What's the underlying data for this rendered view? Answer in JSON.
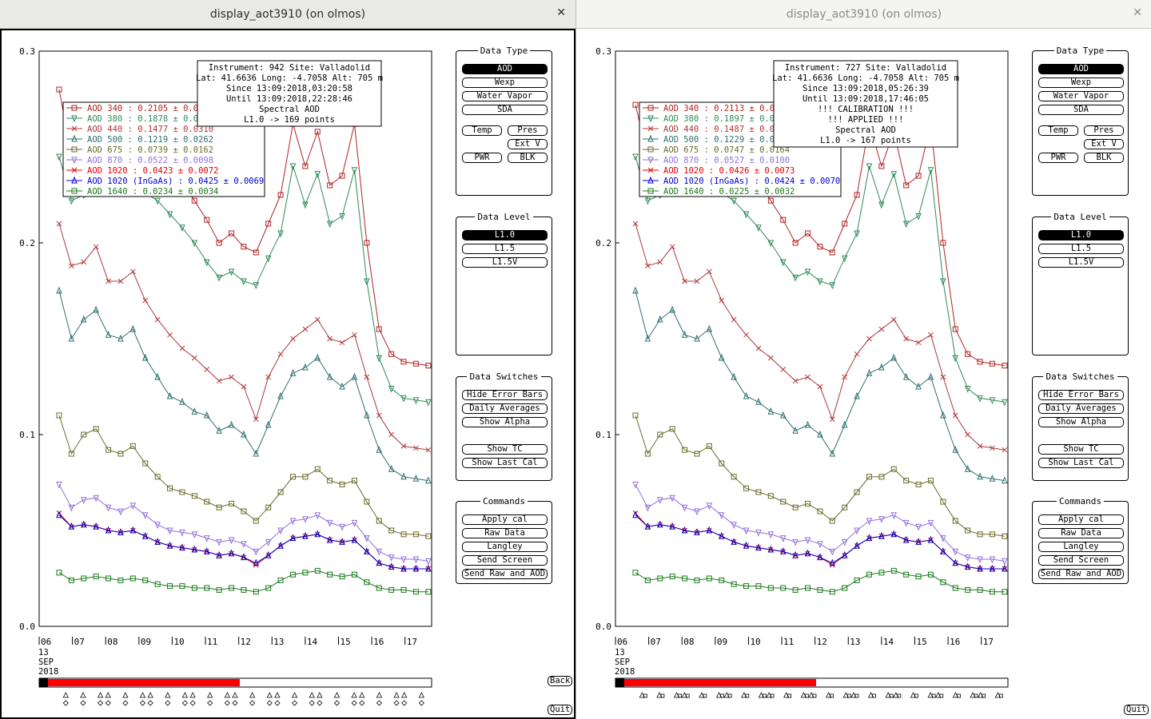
{
  "windows": [
    {
      "title": "display_aot3910 (on olmos)",
      "close_icon": "✕",
      "info_box": [
        "Instrument: 942 Site: Valladolid",
        "Lat: 41.6636 Long: -4.7058 Alt: 705 m",
        "Since 13:09:2018,03:20:58",
        "Until 13:09:2018,22:28:46",
        "Spectral AOD",
        "L1.0 -> 169 points"
      ],
      "legend": [
        {
          "name": "AOD 340",
          "stat": "  : 0.2105 ± 0.0",
          "color": "#b22222",
          "marker": "square"
        },
        {
          "name": "AOD 380",
          "stat": "  : 0.1878 ± 0.0",
          "color": "#2e8b57",
          "marker": "tri-down"
        },
        {
          "name": "AOD 440",
          "stat": "  : 0.1477 ± 0.0310",
          "color": "#b03838",
          "marker": "x"
        },
        {
          "name": "AOD 500",
          "stat": "  : 0.1219 ± 0.0262",
          "color": "#2f6f6f",
          "marker": "tri-up"
        },
        {
          "name": "AOD 675",
          "stat": "  : 0.0739 ± 0.0162",
          "color": "#6b6b2a",
          "marker": "square"
        },
        {
          "name": "AOD 870",
          "stat": "  : 0.0522 ± 0.0098",
          "color": "#9370db",
          "marker": "tri-down"
        },
        {
          "name": "AOD 1020",
          "stat": "  : 0.0423 ± 0.0072",
          "color": "#e00000",
          "marker": "x"
        },
        {
          "name": "AOD 1020 (InGaAs)",
          "stat": "  : 0.0425 ± 0.0069",
          "color": "#0000cc",
          "marker": "tri-up"
        },
        {
          "name": "AOD 1640",
          "stat": "  : 0.0234 ± 0.0034",
          "color": "#1a7a1a",
          "marker": "square"
        }
      ],
      "progress_fraction": 0.5,
      "back_label": "Back"
    },
    {
      "title": "display_aot3910 (on olmos)",
      "close_icon": "✕",
      "info_box": [
        "Instrument: 727 Site: Valladolid",
        "Lat: 41.6636 Long: -4.7058 Alt: 705 m",
        "Since 13:09:2018,05:26:39",
        "Until 13:09:2018,17:46:05",
        "!!! CALIBRATION !!!",
        "!!!   APPLIED   !!!",
        "Spectral AOD",
        "L1.0 -> 167 points"
      ],
      "legend": [
        {
          "name": "AOD 340",
          "stat": "  : 0.2113 ± 0.0",
          "color": "#b22222",
          "marker": "square"
        },
        {
          "name": "AOD 380",
          "stat": "  : 0.1897 ± 0.0",
          "color": "#2e8b57",
          "marker": "tri-down"
        },
        {
          "name": "AOD 440",
          "stat": "  : 0.1487 ± 0.0",
          "color": "#b03838",
          "marker": "x"
        },
        {
          "name": "AOD 500",
          "stat": "  : 0.1229 ± 0.0",
          "color": "#2f6f6f",
          "marker": "tri-up"
        },
        {
          "name": "AOD 675",
          "stat": "  : 0.0747 ± 0.0164",
          "color": "#6b6b2a",
          "marker": "square"
        },
        {
          "name": "AOD 870",
          "stat": "  : 0.0527 ± 0.0100",
          "color": "#9370db",
          "marker": "tri-down"
        },
        {
          "name": "AOD 1020",
          "stat": "  : 0.0426 ± 0.0073",
          "color": "#e00000",
          "marker": "x"
        },
        {
          "name": "AOD 1020 (InGaAs)",
          "stat": "  : 0.0424 ± 0.0070",
          "color": "#0000cc",
          "marker": "tri-up"
        },
        {
          "name": "AOD 1640",
          "stat": "  : 0.0225 ± 0.0032",
          "color": "#1a7a1a",
          "marker": "square"
        }
      ],
      "progress_fraction": 0.5,
      "back_label": ""
    }
  ],
  "axes": {
    "y_ticks": [
      "0.0",
      "0.1",
      "0.2",
      "0.3"
    ],
    "x_ticks": [
      "06",
      "07",
      "08",
      "09",
      "10",
      "11",
      "12",
      "13",
      "14",
      "15",
      "16",
      "17"
    ],
    "x_date_lines": [
      "13",
      "SEP",
      "2018"
    ]
  },
  "panels": {
    "data_type": {
      "title": "Data Type",
      "buttons": [
        "AOD",
        "Wexp",
        "Water Vapor",
        "SDA",
        "Temp",
        "Pres",
        "Ext V",
        "PWR",
        "BLK"
      ],
      "selected": "AOD"
    },
    "data_level": {
      "title": "Data Level",
      "buttons": [
        "L1.0",
        "L1.5",
        "L1.5V"
      ],
      "selected": "L1.0"
    },
    "data_switches": {
      "title": "Data Switches",
      "buttons": [
        "Hide Error Bars",
        "Daily Averages",
        "Show Alpha",
        "Show TC",
        "Show Last Cal"
      ]
    },
    "commands": {
      "title": "Commands",
      "buttons": [
        "Apply cal",
        "Raw Data",
        "Langley",
        "Send Screen",
        "Send Raw and AOD"
      ]
    }
  },
  "quit_label": "Quit",
  "chart_data": [
    {
      "type": "line",
      "title": "",
      "xlabel": "",
      "ylabel": "",
      "x_range_hours": [
        6,
        17.8
      ],
      "ylim": [
        0,
        0.3
      ],
      "series": [
        {
          "name": "AOD 340",
          "values": [
            0.28,
            0.245,
            0.248,
            0.262,
            0.252,
            0.256,
            0.26,
            0.248,
            0.246,
            0.24,
            0.232,
            0.222,
            0.212,
            0.2,
            0.205,
            0.198,
            0.195,
            0.21,
            0.225,
            0.262,
            0.24,
            0.258,
            0.23,
            0.235,
            0.262,
            0.2,
            0.155,
            0.142,
            0.138,
            0.137,
            0.136
          ]
        },
        {
          "name": "AOD 380",
          "values": [
            0.245,
            0.222,
            0.225,
            0.24,
            0.23,
            0.232,
            0.236,
            0.226,
            0.222,
            0.215,
            0.208,
            0.2,
            0.19,
            0.182,
            0.185,
            0.18,
            0.178,
            0.192,
            0.205,
            0.24,
            0.22,
            0.236,
            0.21,
            0.214,
            0.238,
            0.18,
            0.14,
            0.124,
            0.119,
            0.118,
            0.117
          ]
        },
        {
          "name": "AOD 440",
          "values": [
            0.21,
            0.188,
            0.19,
            0.198,
            0.18,
            0.18,
            0.185,
            0.17,
            0.16,
            0.152,
            0.145,
            0.14,
            0.134,
            0.128,
            0.13,
            0.125,
            0.108,
            0.13,
            0.142,
            0.15,
            0.155,
            0.16,
            0.15,
            0.148,
            0.152,
            0.13,
            0.11,
            0.1,
            0.094,
            0.093,
            0.092
          ]
        },
        {
          "name": "AOD 500",
          "values": [
            0.175,
            0.15,
            0.16,
            0.165,
            0.152,
            0.15,
            0.155,
            0.14,
            0.13,
            0.12,
            0.117,
            0.112,
            0.11,
            0.102,
            0.105,
            0.1,
            0.09,
            0.105,
            0.12,
            0.132,
            0.135,
            0.14,
            0.13,
            0.125,
            0.13,
            0.11,
            0.092,
            0.082,
            0.078,
            0.077,
            0.076
          ]
        },
        {
          "name": "AOD 675",
          "values": [
            0.11,
            0.09,
            0.1,
            0.103,
            0.092,
            0.09,
            0.094,
            0.085,
            0.078,
            0.072,
            0.07,
            0.068,
            0.065,
            0.062,
            0.064,
            0.06,
            0.055,
            0.062,
            0.07,
            0.078,
            0.078,
            0.082,
            0.076,
            0.074,
            0.076,
            0.065,
            0.055,
            0.05,
            0.048,
            0.048,
            0.047
          ]
        },
        {
          "name": "AOD 870",
          "values": [
            0.074,
            0.062,
            0.066,
            0.067,
            0.062,
            0.06,
            0.063,
            0.058,
            0.053,
            0.05,
            0.049,
            0.048,
            0.046,
            0.044,
            0.045,
            0.043,
            0.039,
            0.044,
            0.05,
            0.055,
            0.056,
            0.058,
            0.054,
            0.052,
            0.054,
            0.046,
            0.039,
            0.036,
            0.035,
            0.035,
            0.034
          ]
        },
        {
          "name": "AOD 1020",
          "values": [
            0.059,
            0.052,
            0.053,
            0.052,
            0.05,
            0.049,
            0.05,
            0.047,
            0.044,
            0.042,
            0.041,
            0.04,
            0.039,
            0.037,
            0.038,
            0.036,
            0.032,
            0.037,
            0.042,
            0.046,
            0.047,
            0.048,
            0.045,
            0.044,
            0.045,
            0.039,
            0.033,
            0.031,
            0.03,
            0.03,
            0.03
          ]
        },
        {
          "name": "AOD 1020 (InGaAs)",
          "values": [
            0.058,
            0.052,
            0.053,
            0.052,
            0.05,
            0.049,
            0.05,
            0.047,
            0.044,
            0.042,
            0.041,
            0.04,
            0.039,
            0.037,
            0.038,
            0.036,
            0.033,
            0.037,
            0.042,
            0.046,
            0.047,
            0.048,
            0.045,
            0.044,
            0.045,
            0.039,
            0.033,
            0.031,
            0.03,
            0.03,
            0.03
          ]
        },
        {
          "name": "AOD 1640",
          "values": [
            0.028,
            0.024,
            0.025,
            0.026,
            0.025,
            0.024,
            0.025,
            0.024,
            0.022,
            0.021,
            0.021,
            0.02,
            0.02,
            0.019,
            0.02,
            0.019,
            0.018,
            0.02,
            0.024,
            0.027,
            0.028,
            0.029,
            0.027,
            0.026,
            0.027,
            0.023,
            0.02,
            0.019,
            0.019,
            0.018,
            0.018
          ]
        }
      ]
    },
    {
      "type": "line",
      "title": "",
      "xlabel": "",
      "ylabel": "",
      "x_range_hours": [
        6,
        17.8
      ],
      "ylim": [
        0,
        0.3
      ],
      "series": [
        {
          "name": "AOD 340",
          "values": [
            0.272,
            0.245,
            0.248,
            0.262,
            0.252,
            0.256,
            0.26,
            0.248,
            0.246,
            0.24,
            0.232,
            0.222,
            0.212,
            0.2,
            0.205,
            0.198,
            0.195,
            0.21,
            0.225,
            0.262,
            0.24,
            0.258,
            0.23,
            0.235,
            0.262,
            0.2,
            0.155,
            0.142,
            0.138,
            0.137,
            0.136
          ]
        },
        {
          "name": "AOD 380",
          "values": [
            0.245,
            0.222,
            0.225,
            0.24,
            0.23,
            0.232,
            0.236,
            0.226,
            0.222,
            0.215,
            0.208,
            0.2,
            0.19,
            0.182,
            0.185,
            0.18,
            0.178,
            0.192,
            0.205,
            0.24,
            0.22,
            0.236,
            0.21,
            0.214,
            0.238,
            0.18,
            0.14,
            0.124,
            0.119,
            0.118,
            0.117
          ]
        },
        {
          "name": "AOD 440",
          "values": [
            0.21,
            0.188,
            0.19,
            0.198,
            0.18,
            0.18,
            0.185,
            0.17,
            0.16,
            0.152,
            0.145,
            0.14,
            0.134,
            0.128,
            0.13,
            0.125,
            0.108,
            0.13,
            0.142,
            0.15,
            0.155,
            0.16,
            0.15,
            0.148,
            0.152,
            0.13,
            0.11,
            0.1,
            0.094,
            0.093,
            0.092
          ]
        },
        {
          "name": "AOD 500",
          "values": [
            0.175,
            0.15,
            0.16,
            0.165,
            0.152,
            0.15,
            0.155,
            0.14,
            0.13,
            0.12,
            0.117,
            0.112,
            0.11,
            0.102,
            0.105,
            0.1,
            0.09,
            0.105,
            0.12,
            0.132,
            0.135,
            0.14,
            0.13,
            0.125,
            0.13,
            0.11,
            0.092,
            0.082,
            0.078,
            0.077,
            0.076
          ]
        },
        {
          "name": "AOD 675",
          "values": [
            0.11,
            0.09,
            0.1,
            0.103,
            0.092,
            0.09,
            0.094,
            0.085,
            0.078,
            0.072,
            0.07,
            0.068,
            0.065,
            0.062,
            0.064,
            0.06,
            0.055,
            0.062,
            0.07,
            0.078,
            0.078,
            0.082,
            0.076,
            0.074,
            0.076,
            0.065,
            0.055,
            0.05,
            0.048,
            0.048,
            0.047
          ]
        },
        {
          "name": "AOD 870",
          "values": [
            0.074,
            0.062,
            0.066,
            0.067,
            0.062,
            0.06,
            0.063,
            0.058,
            0.053,
            0.05,
            0.049,
            0.048,
            0.046,
            0.044,
            0.045,
            0.043,
            0.039,
            0.044,
            0.05,
            0.055,
            0.056,
            0.058,
            0.054,
            0.052,
            0.054,
            0.046,
            0.039,
            0.036,
            0.035,
            0.035,
            0.034
          ]
        },
        {
          "name": "AOD 1020",
          "values": [
            0.059,
            0.052,
            0.053,
            0.052,
            0.05,
            0.049,
            0.05,
            0.047,
            0.044,
            0.042,
            0.041,
            0.04,
            0.039,
            0.037,
            0.038,
            0.036,
            0.032,
            0.037,
            0.042,
            0.046,
            0.047,
            0.048,
            0.045,
            0.044,
            0.045,
            0.039,
            0.033,
            0.031,
            0.03,
            0.03,
            0.03
          ]
        },
        {
          "name": "AOD 1020 (InGaAs)",
          "values": [
            0.058,
            0.052,
            0.053,
            0.052,
            0.05,
            0.049,
            0.05,
            0.047,
            0.044,
            0.042,
            0.041,
            0.04,
            0.039,
            0.037,
            0.038,
            0.036,
            0.033,
            0.037,
            0.042,
            0.046,
            0.047,
            0.048,
            0.045,
            0.044,
            0.045,
            0.039,
            0.033,
            0.031,
            0.03,
            0.03,
            0.03
          ]
        },
        {
          "name": "AOD 1640",
          "values": [
            0.028,
            0.024,
            0.025,
            0.026,
            0.025,
            0.024,
            0.025,
            0.024,
            0.022,
            0.021,
            0.021,
            0.02,
            0.02,
            0.019,
            0.02,
            0.019,
            0.018,
            0.02,
            0.024,
            0.027,
            0.028,
            0.029,
            0.027,
            0.026,
            0.027,
            0.023,
            0.02,
            0.019,
            0.019,
            0.018,
            0.018
          ]
        }
      ]
    }
  ]
}
